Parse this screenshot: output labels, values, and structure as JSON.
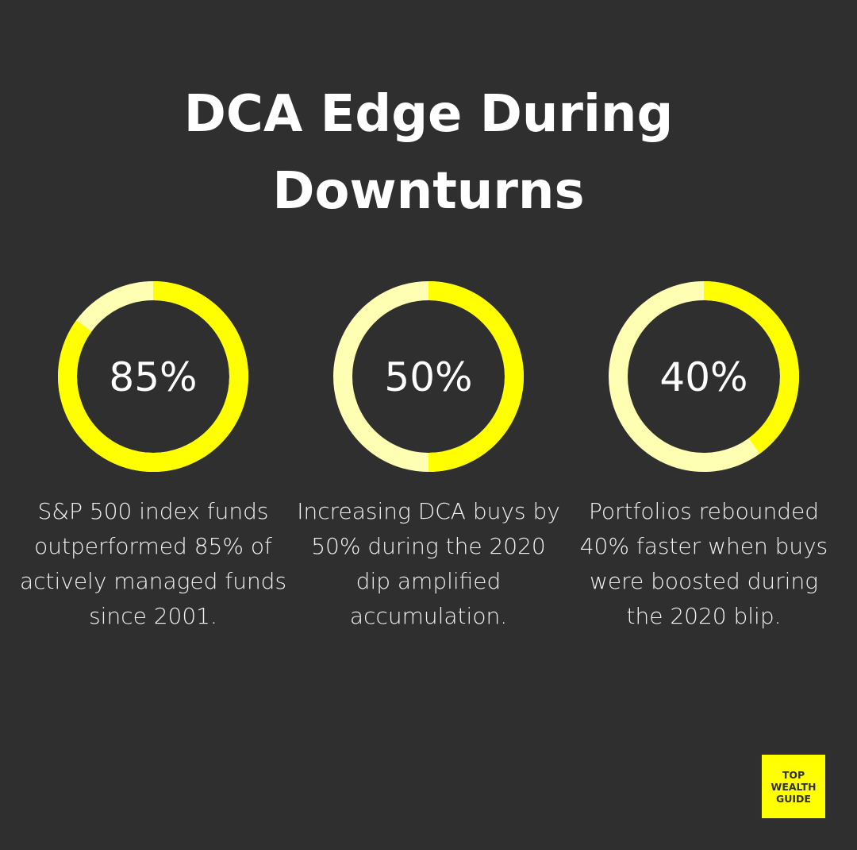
{
  "title": {
    "line1": "DCA Edge During",
    "line2": "Downturns"
  },
  "colors": {
    "background": "#2f2f2f",
    "filled": "#ffff00",
    "remainder": "#ffffb3"
  },
  "chart_data": [
    {
      "type": "pie",
      "variant": "donut",
      "value": 85,
      "label": "85%",
      "description": "S&P 500 index funds outperformed 85% of actively managed funds since 2001."
    },
    {
      "type": "pie",
      "variant": "donut",
      "value": 50,
      "label": "50%",
      "description": "Increasing DCA buys by 50% during the 2020 dip amplified accumulation."
    },
    {
      "type": "pie",
      "variant": "donut",
      "value": 40,
      "label": "40%",
      "description": "Portfolios rebounded 40% faster when buys were boosted during the 2020 blip."
    }
  ],
  "logo": {
    "line1": "TOP",
    "line2": "WEALTH",
    "line3": "GUIDE"
  }
}
